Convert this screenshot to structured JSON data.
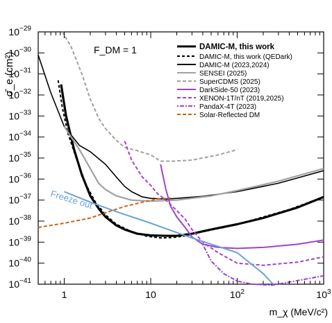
{
  "chart_data": {
    "type": "line",
    "title": "",
    "annotation": "F_DM = 1",
    "inline_label": "Freeze out",
    "xlabel": "m_χ (MeV/c²)",
    "ylabel": "σ̄_e (cm²)",
    "x_scale": "log",
    "y_scale": "log",
    "xlim": [
      0.5,
      1000
    ],
    "ylim": [
      1e-41,
      1e-29
    ],
    "x_ticks": [
      {
        "v": 1,
        "base": "1",
        "exp": ""
      },
      {
        "v": 10,
        "base": "10",
        "exp": ""
      },
      {
        "v": 100,
        "base": "10",
        "exp": "2"
      },
      {
        "v": 1000,
        "base": "10",
        "exp": "3"
      }
    ],
    "y_ticks": [
      {
        "v": -29,
        "base": "10",
        "exp": "−29"
      },
      {
        "v": -30,
        "base": "10",
        "exp": "−30"
      },
      {
        "v": -31,
        "base": "10",
        "exp": "−31"
      },
      {
        "v": -32,
        "base": "10",
        "exp": "−32"
      },
      {
        "v": -33,
        "base": "10",
        "exp": "−33"
      },
      {
        "v": -34,
        "base": "10",
        "exp": "−34"
      },
      {
        "v": -35,
        "base": "10",
        "exp": "−35"
      },
      {
        "v": -36,
        "base": "10",
        "exp": "−36"
      },
      {
        "v": -37,
        "base": "10",
        "exp": "−37"
      },
      {
        "v": -38,
        "base": "10",
        "exp": "−38"
      },
      {
        "v": -39,
        "base": "10",
        "exp": "−39"
      },
      {
        "v": -40,
        "base": "10",
        "exp": "−40"
      },
      {
        "v": -41,
        "base": "10",
        "exp": "−41"
      }
    ],
    "legend_position": "top-right",
    "grid": false,
    "series": [
      {
        "name": "DAMIC-M, this work",
        "color": "#000000",
        "dash": "solid",
        "width": 3.2,
        "bold": true,
        "points": [
          [
            0.92,
            -31.5
          ],
          [
            1.05,
            -33
          ],
          [
            1.3,
            -34.6
          ],
          [
            1.6,
            -35.8
          ],
          [
            2.0,
            -36.8
          ],
          [
            2.5,
            -37.4
          ],
          [
            3,
            -37.8
          ],
          [
            4,
            -38.2
          ],
          [
            5,
            -38.4
          ],
          [
            7,
            -38.6
          ],
          [
            10,
            -38.68
          ],
          [
            15,
            -38.7
          ],
          [
            20,
            -38.7
          ],
          [
            30,
            -38.6
          ],
          [
            50,
            -38.4
          ],
          [
            100,
            -38.15
          ],
          [
            200,
            -37.85
          ],
          [
            500,
            -37.35
          ],
          [
            1000,
            -36.85
          ]
        ]
      },
      {
        "name": "DAMIC-M, this work (QEDark)",
        "color": "#000000",
        "dash": "4,3",
        "width": 2,
        "points": [
          [
            0.85,
            -31.3
          ],
          [
            0.95,
            -32.6
          ],
          [
            1.1,
            -33.8
          ],
          [
            1.4,
            -35.1
          ],
          [
            1.8,
            -36.3
          ],
          [
            2.3,
            -37.1
          ],
          [
            3,
            -37.7
          ],
          [
            4,
            -38.15
          ],
          [
            6,
            -38.5
          ],
          [
            9,
            -38.72
          ],
          [
            13,
            -38.8
          ],
          [
            18,
            -38.78
          ],
          [
            25,
            -38.7
          ],
          [
            40,
            -38.5
          ],
          [
            70,
            -38.3
          ],
          [
            150,
            -37.95
          ],
          [
            400,
            -37.45
          ],
          [
            1000,
            -36.85
          ]
        ]
      },
      {
        "name": "DAMIC-M (2023,2024)",
        "color": "#000000",
        "dash": "solid",
        "width": 1.6,
        "points": [
          [
            0.5,
            -30.1
          ],
          [
            0.7,
            -31.9
          ],
          [
            1,
            -33.5
          ],
          [
            1.5,
            -34.4
          ],
          [
            2,
            -34.7
          ],
          [
            3,
            -35.3
          ],
          [
            4,
            -35.9
          ],
          [
            5,
            -36.35
          ],
          [
            6,
            -36.6
          ],
          [
            8,
            -36.85
          ],
          [
            10,
            -36.92
          ],
          [
            15,
            -36.95
          ],
          [
            20,
            -36.92
          ],
          [
            40,
            -36.82
          ],
          [
            100,
            -36.6
          ],
          [
            300,
            -36.2
          ],
          [
            1000,
            -35.6
          ]
        ]
      },
      {
        "name": "SENSEI (2025)",
        "color": "#a0a0a0",
        "dash": "solid",
        "width": 2.2,
        "points": [
          [
            1,
            -33.5
          ],
          [
            1.5,
            -34.6
          ],
          [
            2,
            -35.5
          ],
          [
            2.5,
            -36.2
          ],
          [
            3,
            -36.5
          ],
          [
            4,
            -36.8
          ],
          [
            6,
            -37
          ],
          [
            10,
            -37.05
          ],
          [
            20,
            -37
          ],
          [
            50,
            -36.8
          ],
          [
            100,
            -36.55
          ],
          [
            300,
            -36.1
          ],
          [
            1000,
            -35.5
          ]
        ]
      },
      {
        "name": "SuperCDMS (2025)",
        "color": "#a0a0a0",
        "dash": "5,3",
        "width": 2,
        "points": [
          [
            0.95,
            -29
          ],
          [
            1.2,
            -29.7
          ],
          [
            1.6,
            -31
          ],
          [
            2,
            -32.2
          ],
          [
            2.5,
            -33.1
          ],
          [
            3,
            -33.6
          ],
          [
            4,
            -34.15
          ],
          [
            5,
            -34.5
          ],
          [
            7,
            -34.65
          ],
          [
            10,
            -34.85
          ],
          [
            13,
            -35.15
          ],
          [
            18,
            -35.15
          ],
          [
            30,
            -35.1
          ],
          [
            60,
            -34.85
          ],
          [
            100,
            -34.6
          ]
        ]
      },
      {
        "name": "DarkSide-50 (2023)",
        "color": "#a040d0",
        "dash": "solid",
        "width": 2,
        "points": [
          [
            13,
            -35.3
          ],
          [
            15,
            -36.5
          ],
          [
            17,
            -37.3
          ],
          [
            20,
            -37.8
          ],
          [
            25,
            -38.3
          ],
          [
            30,
            -38.75
          ],
          [
            40,
            -39.1
          ],
          [
            60,
            -39.25
          ],
          [
            100,
            -39.3
          ],
          [
            200,
            -39.25
          ],
          [
            500,
            -39.1
          ],
          [
            1000,
            -38.9
          ]
        ]
      },
      {
        "name": "XENON-1T/nT (2019,2025)",
        "color": "#a040d0",
        "dash": "5,3",
        "width": 2,
        "points": [
          [
            5,
            -34.2
          ],
          [
            6,
            -35.1
          ],
          [
            8,
            -35.9
          ],
          [
            10,
            -36.3
          ],
          [
            12,
            -36.7
          ],
          [
            15,
            -37
          ],
          [
            20,
            -37.5
          ],
          [
            25,
            -37.9
          ],
          [
            30,
            -38.4
          ],
          [
            40,
            -39
          ],
          [
            60,
            -39.5
          ],
          [
            100,
            -40
          ],
          [
            200,
            -40.1
          ],
          [
            500,
            -39.95
          ],
          [
            1000,
            -39.7
          ]
        ]
      },
      {
        "name": "PandaX-4T (2023)",
        "color": "#a040d0",
        "dash": "2,2,6,2",
        "width": 2,
        "points": [
          [
            40,
            -39.1
          ],
          [
            50,
            -39.9
          ],
          [
            70,
            -40.5
          ],
          [
            100,
            -40.85
          ],
          [
            150,
            -41.0
          ],
          [
            250,
            -41.05
          ],
          [
            400,
            -40.9
          ],
          [
            1000,
            -40.6
          ]
        ]
      },
      {
        "name": "Solar-Reflected DM",
        "color": "#d06010",
        "dash": "5,3",
        "width": 2,
        "points": [
          [
            0.5,
            -38.3
          ],
          [
            1,
            -38.1
          ],
          [
            2,
            -37.85
          ],
          [
            3,
            -37.6
          ],
          [
            5,
            -37.3
          ],
          [
            8,
            -37.1
          ],
          [
            12,
            -36.95
          ],
          [
            17,
            -36.9
          ]
        ]
      },
      {
        "name": "",
        "color": "#6aa2d6",
        "dash": "solid",
        "width": 2,
        "points": [
          [
            1,
            -36.6
          ],
          [
            2,
            -37.1
          ],
          [
            4,
            -37.55
          ],
          [
            10,
            -38.1
          ],
          [
            30,
            -38.8
          ],
          [
            100,
            -39.5
          ],
          [
            200,
            -40.5
          ],
          [
            260,
            -41
          ]
        ]
      }
    ]
  }
}
